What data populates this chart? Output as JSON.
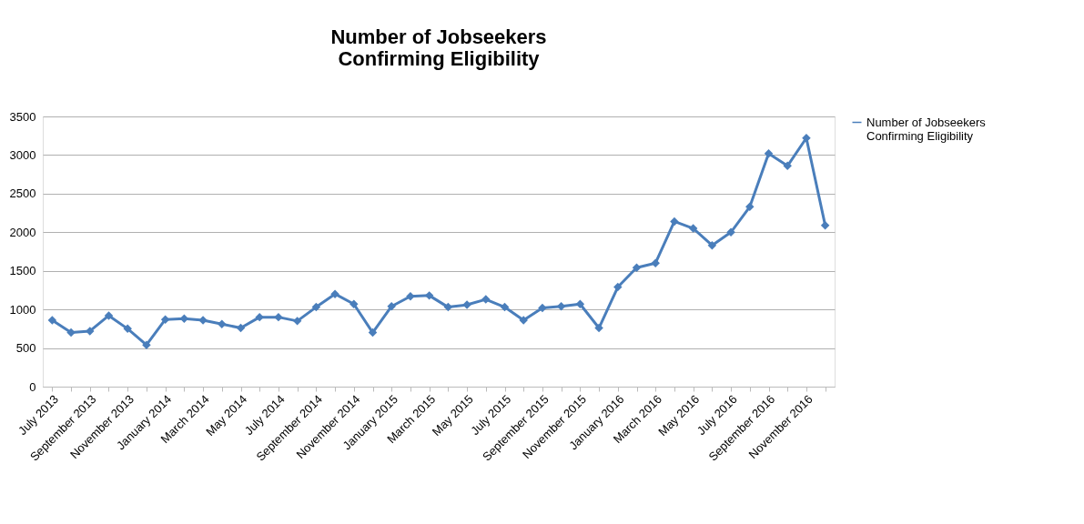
{
  "chart_data": {
    "type": "line",
    "title": "Number of Jobseekers\nConfirming Eligibility",
    "categories": [
      "July 2013",
      null,
      "September 2013",
      null,
      "November 2013",
      null,
      "January 2014",
      null,
      "March 2014",
      null,
      "May 2014",
      null,
      "July 2014",
      null,
      "September 2014",
      null,
      "November 2014",
      null,
      "January 2015",
      null,
      "March 2015",
      null,
      "May 2015",
      null,
      "July 2015",
      null,
      "September 2015",
      null,
      "November 2015",
      null,
      "January 2016",
      null,
      "March 2016",
      null,
      "May 2016",
      null,
      "July 2016",
      null,
      "September 2016",
      null,
      "November 2016",
      null
    ],
    "series": [
      {
        "name": "Number of Jobseekers Confirming Eligibility",
        "color": "#4a7ebb",
        "values": [
          860,
          700,
          720,
          920,
          750,
          540,
          870,
          880,
          860,
          810,
          760,
          900,
          900,
          850,
          1030,
          1200,
          1070,
          700,
          1040,
          1170,
          1180,
          1030,
          1060,
          1130,
          1030,
          860,
          1020,
          1040,
          1070,
          760,
          1290,
          1540,
          1600,
          2140,
          2050,
          1830,
          2000,
          2330,
          3020,
          2860,
          3220,
          2090
        ]
      }
    ],
    "ylim": [
      0,
      3500
    ],
    "yticks": [
      0,
      500,
      1000,
      1500,
      2000,
      2500,
      3000,
      3500
    ],
    "grid": "y",
    "legend": "right",
    "marker": "diamond",
    "line_style": "solid"
  }
}
